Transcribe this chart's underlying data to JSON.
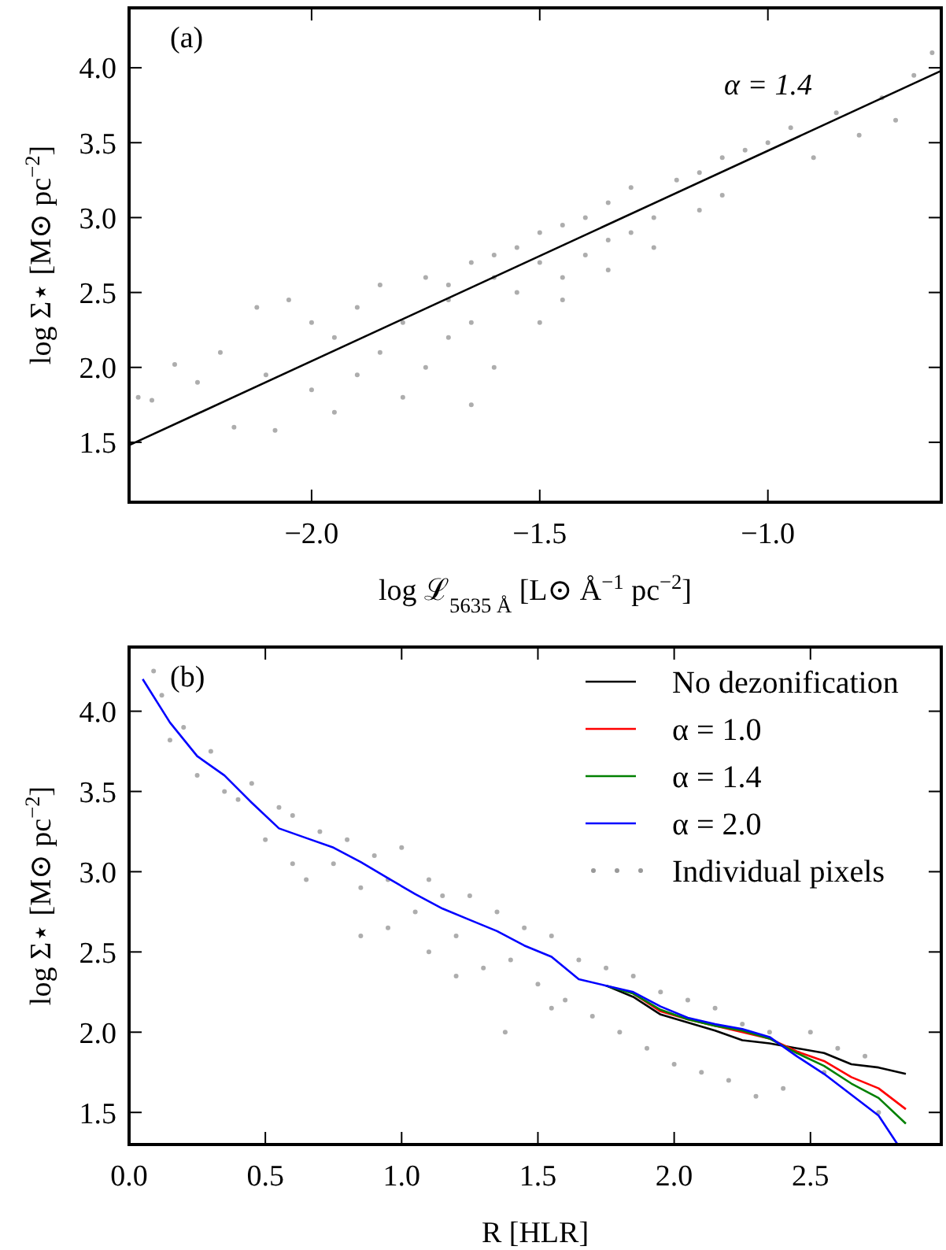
{
  "chart_data": [
    {
      "type": "scatter",
      "xlabel": "log ℒ$_{5635 Å}$ [L⊙ Å$^{−1}$ pc$^{−2}$]",
      "ylabel": "log Σ⋆ [M⊙ pc$^{−2}$]",
      "annotations": [
        "(a)",
        "α = 1.4"
      ],
      "xlim": [
        -2.4,
        -0.62
      ],
      "ylim": [
        1.1,
        4.4
      ],
      "xticks": [
        {
          "value": -2.0,
          "label": "−2.0"
        },
        {
          "value": -1.5,
          "label": "−1.5"
        },
        {
          "value": -1.0,
          "label": "−1.0"
        }
      ],
      "yticks": [
        {
          "value": 1.5,
          "label": "1.5"
        },
        {
          "value": 2.0,
          "label": "2.0"
        },
        {
          "value": 2.5,
          "label": "2.5"
        },
        {
          "value": 3.0,
          "label": "3.0"
        },
        {
          "value": 3.5,
          "label": "3.5"
        },
        {
          "value": 4.0,
          "label": "4.0"
        }
      ],
      "grid": false,
      "legend": false,
      "series": [
        {
          "color": "#999999",
          "marker": "circle",
          "x": [
            -2.38,
            -2.35,
            -2.3,
            -2.25,
            -2.2,
            -2.17,
            -2.12,
            -2.1,
            -2.08,
            -2.05,
            -2.0,
            -2.0,
            -1.95,
            -1.95,
            -1.9,
            -1.9,
            -1.85,
            -1.85,
            -1.8,
            -1.8,
            -1.75,
            -1.75,
            -1.7,
            -1.7,
            -1.65,
            -1.65,
            -1.65,
            -1.6,
            -1.6,
            -1.55,
            -1.55,
            -1.5,
            -1.5,
            -1.5,
            -1.45,
            -1.45,
            -1.4,
            -1.4,
            -1.35,
            -1.35,
            -1.3,
            -1.3,
            -1.25,
            -1.25,
            -1.2,
            -1.15,
            -1.15,
            -1.1,
            -1.1,
            -1.05,
            -1.0,
            -0.95,
            -0.9,
            -0.85,
            -0.8,
            -0.75,
            -0.72,
            -0.68,
            -0.64,
            -1.7,
            -1.6,
            -1.45,
            -1.35
          ],
          "values": [
            1.8,
            1.78,
            2.02,
            1.9,
            2.1,
            1.6,
            2.4,
            1.95,
            1.58,
            2.45,
            2.3,
            1.85,
            2.2,
            1.7,
            2.4,
            1.95,
            2.55,
            2.1,
            2.3,
            1.8,
            2.6,
            2.0,
            2.45,
            2.2,
            2.7,
            2.3,
            1.75,
            2.6,
            2.0,
            2.8,
            2.5,
            2.9,
            2.7,
            2.3,
            2.95,
            2.6,
            3.0,
            2.75,
            3.1,
            2.85,
            3.2,
            2.9,
            3.0,
            2.8,
            3.25,
            3.3,
            3.05,
            3.4,
            3.15,
            3.45,
            3.5,
            3.6,
            3.4,
            3.7,
            3.55,
            3.8,
            3.65,
            3.95,
            4.1,
            2.55,
            2.75,
            2.45,
            2.65
          ]
        },
        {
          "type": "line",
          "color": "#000000",
          "marker": "none",
          "x": [
            -2.4,
            -0.62
          ],
          "values": [
            1.48,
            3.98
          ]
        }
      ]
    },
    {
      "type": "line",
      "xlabel": "R [HLR]",
      "ylabel": "log Σ⋆ [M⊙ pc$^{−2}$]",
      "annotations": [
        "(b)"
      ],
      "xlim": [
        0,
        2.98
      ],
      "ylim": [
        1.3,
        4.4
      ],
      "xticks": [
        {
          "value": 0,
          "label": "0.0"
        },
        {
          "value": 0.5,
          "label": "0.5"
        },
        {
          "value": 1.0,
          "label": "1.0"
        },
        {
          "value": 1.5,
          "label": "1.5"
        },
        {
          "value": 2.0,
          "label": "2.0"
        },
        {
          "value": 2.5,
          "label": "2.5"
        }
      ],
      "yticks": [
        {
          "value": 1.5,
          "label": "1.5"
        },
        {
          "value": 2.0,
          "label": "2.0"
        },
        {
          "value": 2.5,
          "label": "2.5"
        },
        {
          "value": 3.0,
          "label": "3.0"
        },
        {
          "value": 3.5,
          "label": "3.5"
        },
        {
          "value": 4.0,
          "label": "4.0"
        }
      ],
      "grid": false,
      "legend": "top right",
      "series": [
        {
          "name": "No dezonification",
          "color": "#000000",
          "marker": "none",
          "x": [
            1.75,
            1.85,
            1.95,
            2.05,
            2.15,
            2.25,
            2.35,
            2.45,
            2.55,
            2.65,
            2.75,
            2.85
          ],
          "values": [
            2.29,
            2.22,
            2.11,
            2.06,
            2.01,
            1.95,
            1.93,
            1.9,
            1.87,
            1.8,
            1.78,
            1.74
          ]
        },
        {
          "name": "α = 1.0",
          "color": "#ff0000",
          "marker": "none",
          "x": [
            1.85,
            1.95,
            2.05,
            2.15,
            2.25,
            2.35,
            2.45,
            2.55,
            2.65,
            2.75,
            2.85
          ],
          "values": [
            2.24,
            2.13,
            2.08,
            2.04,
            2.0,
            1.96,
            1.88,
            1.82,
            1.72,
            1.65,
            1.52
          ]
        },
        {
          "name": "α = 1.4",
          "color": "#008000",
          "marker": "none",
          "x": [
            1.75,
            1.85,
            1.95,
            2.05,
            2.15,
            2.25,
            2.35,
            2.45,
            2.55,
            2.65,
            2.75,
            2.85
          ],
          "values": [
            2.29,
            2.24,
            2.14,
            2.08,
            2.04,
            2.01,
            1.96,
            1.87,
            1.79,
            1.68,
            1.59,
            1.43
          ]
        },
        {
          "name": "α = 2.0",
          "color": "#0000ff",
          "marker": "none",
          "x": [
            0.05,
            0.15,
            0.25,
            0.35,
            0.45,
            0.55,
            0.65,
            0.75,
            0.85,
            0.95,
            1.05,
            1.15,
            1.25,
            1.35,
            1.45,
            1.55,
            1.65,
            1.75,
            1.85,
            1.95,
            2.05,
            2.15,
            2.25,
            2.35,
            2.45,
            2.55,
            2.65,
            2.75,
            2.82
          ],
          "values": [
            4.2,
            3.93,
            3.72,
            3.6,
            3.43,
            3.27,
            3.21,
            3.15,
            3.06,
            2.96,
            2.86,
            2.77,
            2.7,
            2.63,
            2.54,
            2.47,
            2.33,
            2.29,
            2.25,
            2.16,
            2.09,
            2.05,
            2.02,
            1.97,
            1.85,
            1.74,
            1.61,
            1.48,
            1.3
          ]
        },
        {
          "type": "scatter",
          "name": "Individual pixels",
          "color": "#999999",
          "marker": "circle",
          "x": [
            0.09,
            0.12,
            0.15,
            0.2,
            0.25,
            0.3,
            0.35,
            0.4,
            0.45,
            0.5,
            0.55,
            0.6,
            0.6,
            0.65,
            0.7,
            0.75,
            0.8,
            0.85,
            0.9,
            0.95,
            0.95,
            1.0,
            1.05,
            1.1,
            1.1,
            1.15,
            1.2,
            1.25,
            1.3,
            1.35,
            1.4,
            1.45,
            1.5,
            1.55,
            1.6,
            1.65,
            1.7,
            1.75,
            1.8,
            1.85,
            1.9,
            1.95,
            2.0,
            2.05,
            2.1,
            2.15,
            2.2,
            2.25,
            2.3,
            2.35,
            2.4,
            2.5,
            2.55,
            2.6,
            2.7,
            2.75,
            1.2,
            1.38,
            1.55,
            0.85
          ],
          "values": [
            4.25,
            4.1,
            3.82,
            3.9,
            3.6,
            3.75,
            3.5,
            3.45,
            3.55,
            3.2,
            3.4,
            3.05,
            3.35,
            2.95,
            3.25,
            3.05,
            3.2,
            2.9,
            3.1,
            2.65,
            2.95,
            3.15,
            2.75,
            2.95,
            2.5,
            2.85,
            2.6,
            2.85,
            2.4,
            2.75,
            2.45,
            2.65,
            2.3,
            2.6,
            2.2,
            2.45,
            2.1,
            2.4,
            2.0,
            2.35,
            1.9,
            2.25,
            1.8,
            2.2,
            1.75,
            2.15,
            1.7,
            2.05,
            1.6,
            2.0,
            1.65,
            2.0,
            1.75,
            1.9,
            1.85,
            1.5,
            2.35,
            2.0,
            2.15,
            2.6
          ]
        }
      ]
    }
  ]
}
